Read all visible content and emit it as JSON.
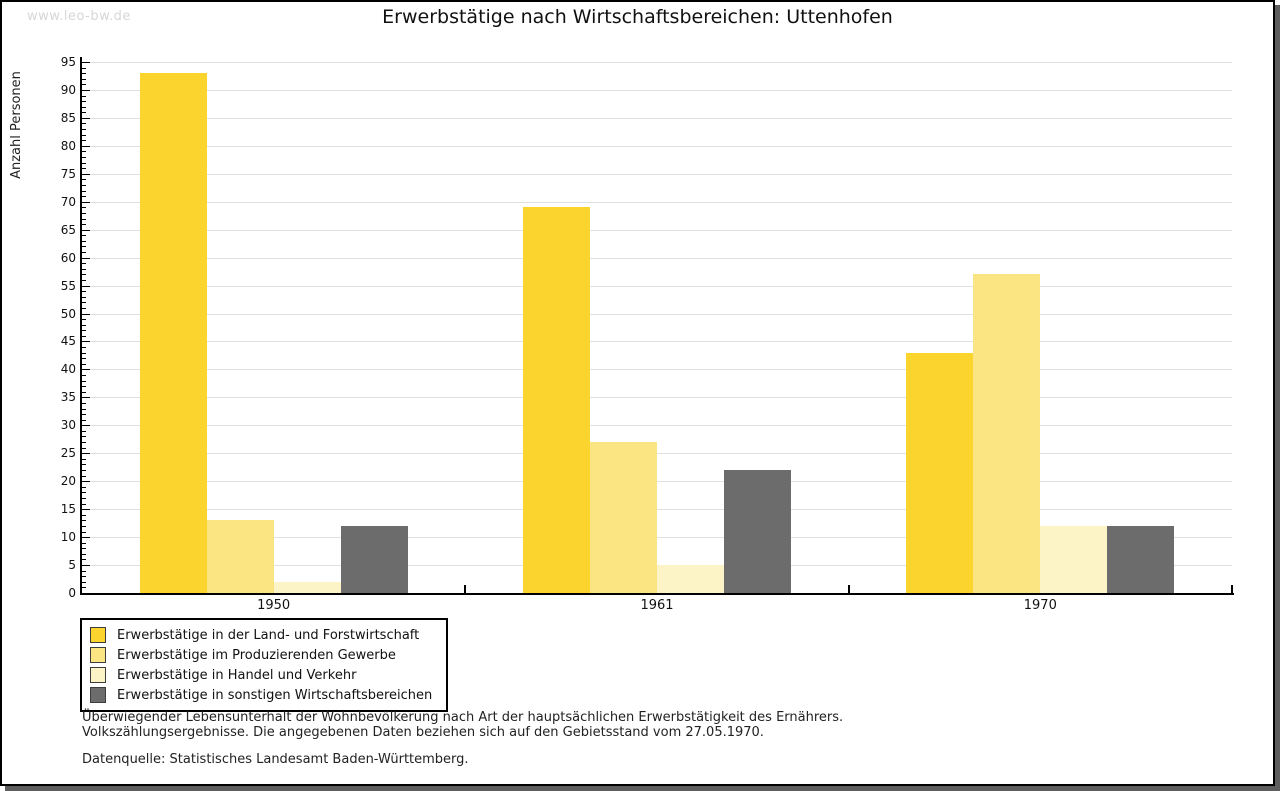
{
  "watermark": "www.leo-bw.de",
  "chart_data": {
    "type": "bar",
    "title": "Erwerbstätige nach Wirtschaftsbereichen: Uttenhofen",
    "ylabel": "Anzahl Personen",
    "xlabel": "",
    "categories": [
      "1950",
      "1961",
      "1970"
    ],
    "series": [
      {
        "name": "Erwerbstätige in der Land- und Forstwirtschaft",
        "color": "#fcd42e",
        "values": [
          93,
          69,
          43
        ]
      },
      {
        "name": "Erwerbstätige im Produzierenden Gewerbe",
        "color": "#fbe482",
        "values": [
          13,
          27,
          57
        ]
      },
      {
        "name": "Erwerbstätige in Handel und Verkehr",
        "color": "#fcf3c6",
        "values": [
          2,
          5,
          12
        ]
      },
      {
        "name": "Erwerbstätige in sonstigen Wirtschaftsbereichen",
        "color": "#6c6c6c",
        "values": [
          12,
          22,
          12
        ]
      }
    ],
    "ylim": [
      0,
      95
    ],
    "y_major_step": 5,
    "y_minor_step": 1,
    "grid": true,
    "gridline_color": "#e0e0e0",
    "legend_position": "bottom-left"
  },
  "footnotes": {
    "line1": "Überwiegender Lebensunterhalt der Wohnbevölkerung nach Art der hauptsächlichen Erwerbstätigkeit des Ernährers.",
    "line2": "Volkszählungsergebnisse. Die angegebenen Daten beziehen sich auf den Gebietsstand vom 27.05.1970.",
    "source": "Datenquelle: Statistisches Landesamt Baden-Württemberg."
  }
}
